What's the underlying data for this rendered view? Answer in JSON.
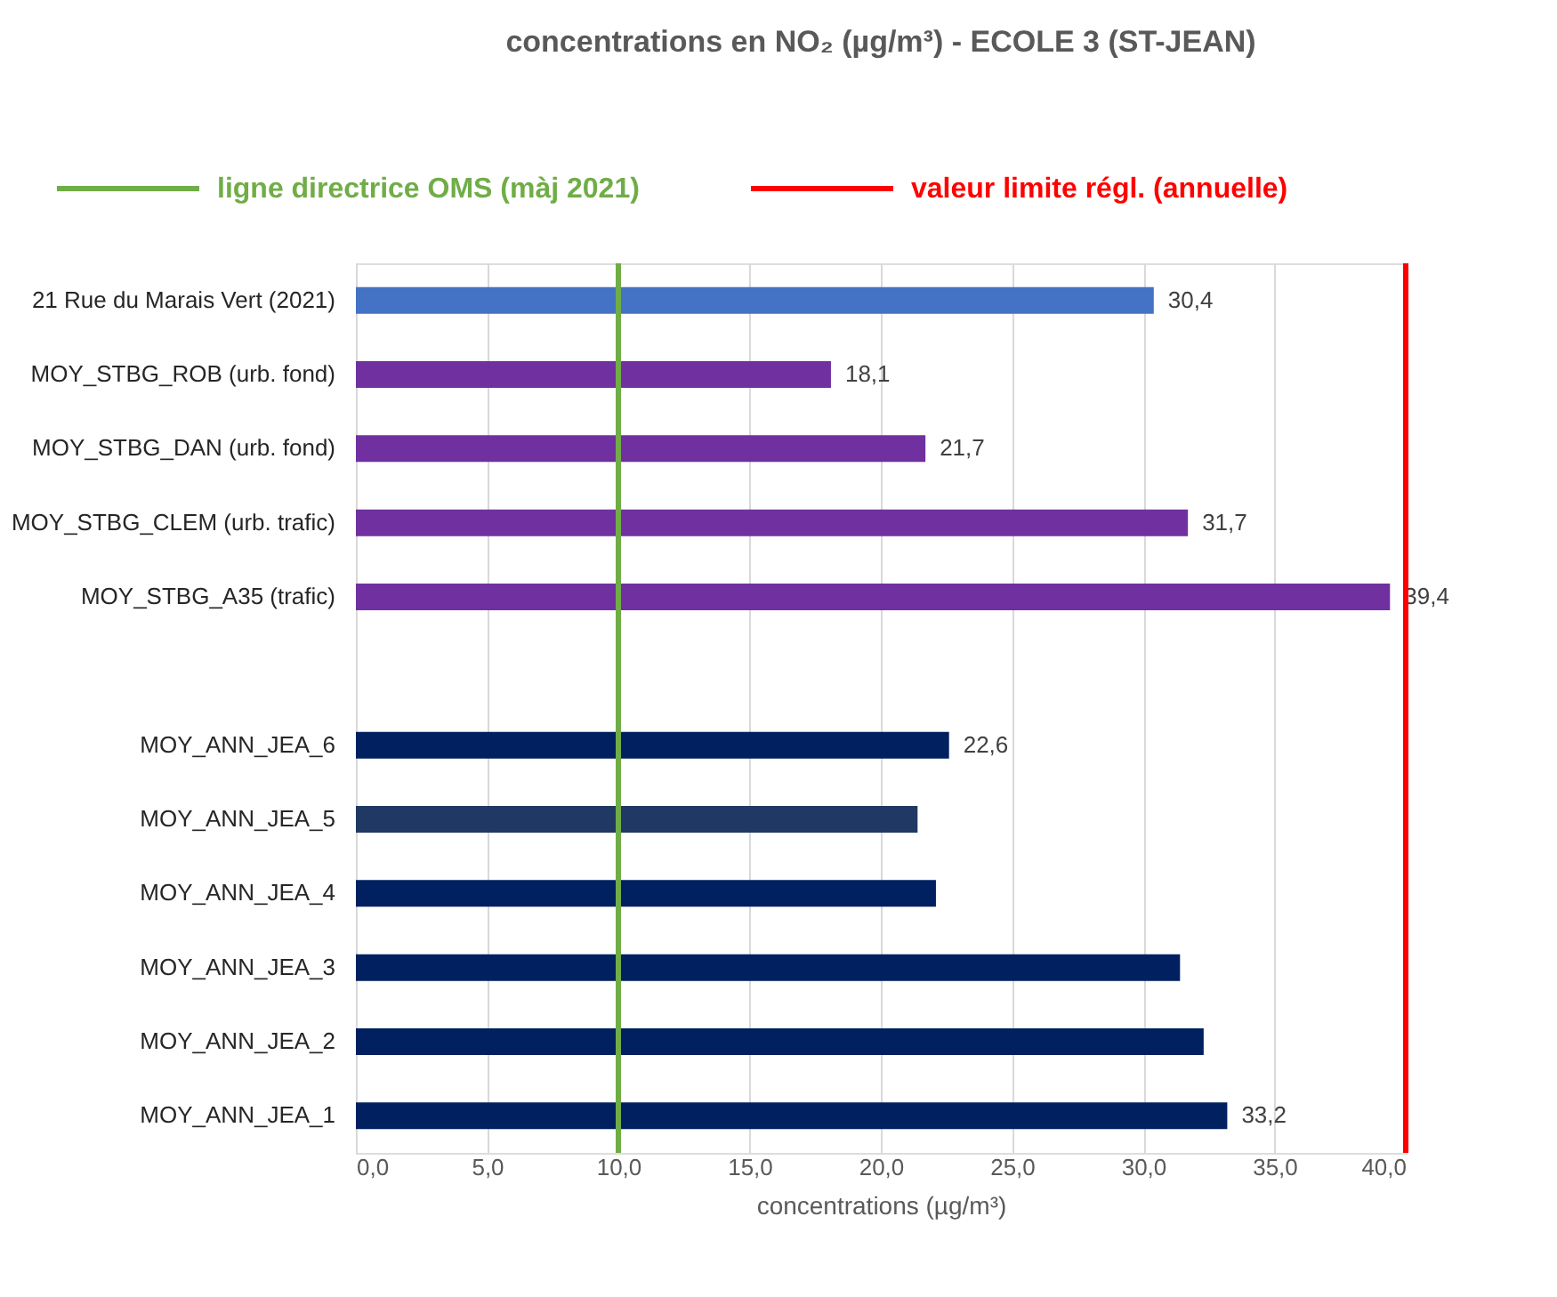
{
  "chart_data": {
    "type": "bar",
    "orientation": "horizontal",
    "title": "concentrations  en NO₂ (µg/m³) - ECOLE 3 (ST-JEAN)",
    "xlabel": "concentrations (µg/m³)",
    "categories": [
      "21 Rue du Marais Vert (2021)",
      "MOY_STBG_ROB (urb. fond)",
      "MOY_STBG_DAN (urb. fond)",
      "MOY_STBG_CLEM (urb. trafic)",
      "MOY_STBG_A35 (trafic)",
      null,
      "MOY_ANN_JEA_6",
      "MOY_ANN_JEA_5",
      "MOY_ANN_JEA_4",
      "MOY_ANN_JEA_3",
      "MOY_ANN_JEA_2",
      "MOY_ANN_JEA_1"
    ],
    "values": [
      30.4,
      18.1,
      21.7,
      31.7,
      39.4,
      null,
      22.6,
      21.4,
      22.1,
      31.4,
      32.3,
      33.2
    ],
    "value_labels": [
      "30,4",
      "18,1",
      "21,7",
      "31,7",
      "39,4",
      null,
      "22,6",
      null,
      null,
      null,
      null,
      "33,2"
    ],
    "colors": [
      "#4472c4",
      "#7030a0",
      "#7030a0",
      "#7030a0",
      "#7030a0",
      "#7030a0",
      "#002060",
      "#203864",
      "#002060",
      "#002060",
      "#002060",
      "#002060"
    ],
    "xlim": [
      0,
      40
    ],
    "xticks": [
      {
        "value": 0,
        "label": "0,0"
      },
      {
        "value": 5,
        "label": "5,0"
      },
      {
        "value": 10,
        "label": "10,0"
      },
      {
        "value": 15,
        "label": "15,0"
      },
      {
        "value": 20,
        "label": "20,0"
      },
      {
        "value": 25,
        "label": "25,0"
      },
      {
        "value": 30,
        "label": "30,0"
      },
      {
        "value": 35,
        "label": "35,0"
      },
      {
        "value": 40,
        "label": "40,0"
      }
    ],
    "grid": "x",
    "legend": "top",
    "ref_lines": [
      {
        "axis": "x",
        "value": 10,
        "label": "ligne directrice OMS (màj 2021)",
        "color": "#70ad47"
      },
      {
        "axis": "x",
        "value": 40,
        "label": "valeur limite régl. (annuelle)",
        "color": "#ff0000"
      }
    ]
  }
}
